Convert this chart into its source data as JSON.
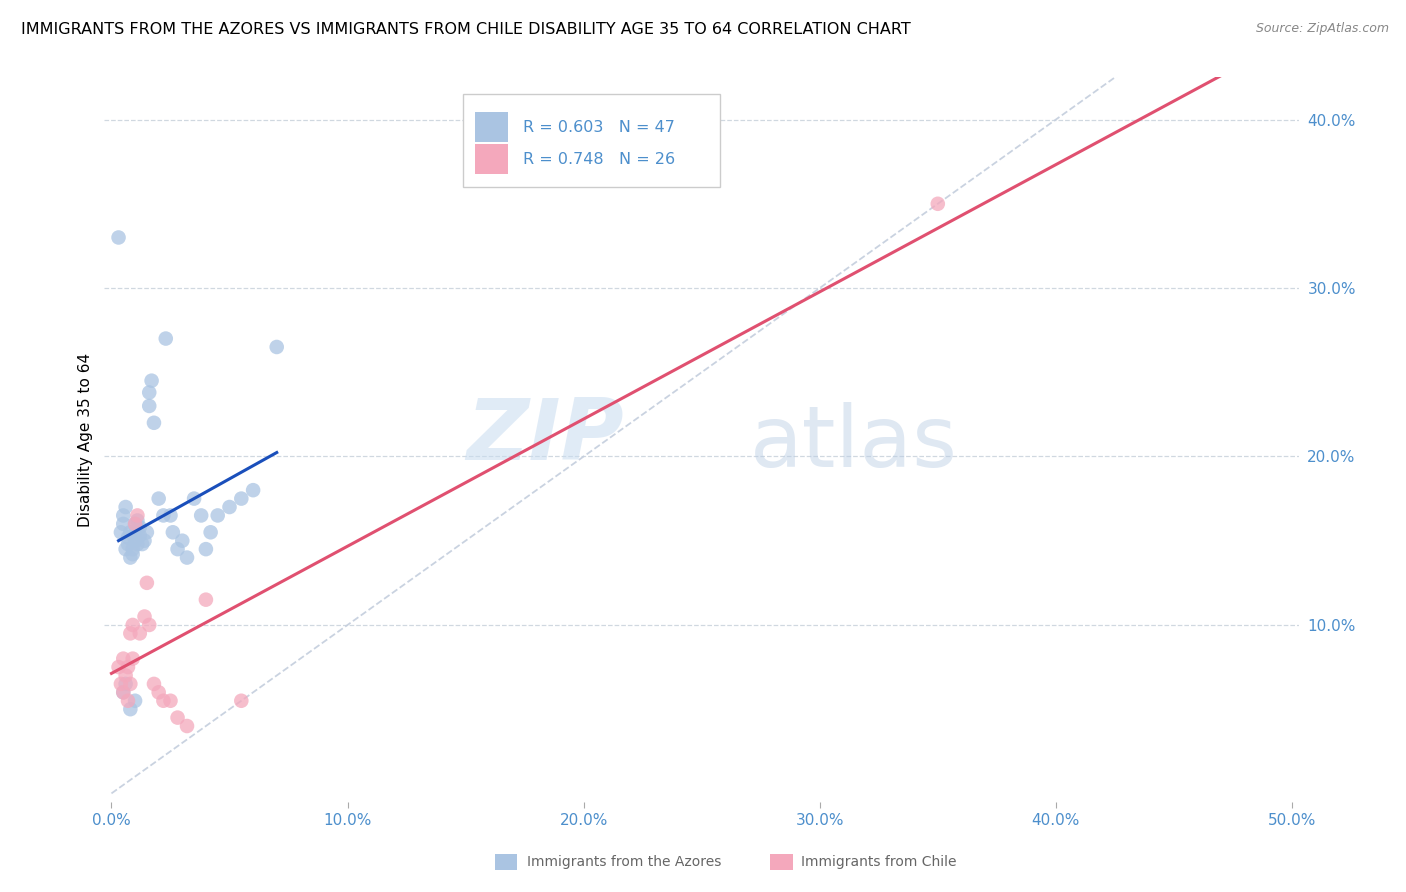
{
  "title": "IMMIGRANTS FROM THE AZORES VS IMMIGRANTS FROM CHILE DISABILITY AGE 35 TO 64 CORRELATION CHART",
  "source": "Source: ZipAtlas.com",
  "ylabel": "Disability Age 35 to 64",
  "xlim": [
    -0.003,
    0.503
  ],
  "ylim": [
    -0.005,
    0.425
  ],
  "xticks": [
    0.0,
    0.1,
    0.2,
    0.3,
    0.4,
    0.5
  ],
  "xticklabels": [
    "0.0%",
    "10.0%",
    "20.0%",
    "30.0%",
    "40.0%",
    "50.0%"
  ],
  "yticks": [
    0.1,
    0.2,
    0.3,
    0.4
  ],
  "yticklabels": [
    "10.0%",
    "20.0%",
    "30.0%",
    "40.0%"
  ],
  "legend_labels": [
    "Immigrants from the Azores",
    "Immigrants from Chile"
  ],
  "R_azores": "0.603",
  "N_azores": "47",
  "R_chile": "0.748",
  "N_chile": "26",
  "azores_color": "#aac4e2",
  "chile_color": "#f4a8bc",
  "azores_line_color": "#1a4fbb",
  "chile_line_color": "#e05070",
  "diagonal_color": "#c4cedd",
  "watermark_zip": "ZIP",
  "watermark_atlas": "atlas",
  "title_fontsize": 11.5,
  "tick_color": "#4d8fcc",
  "azores_x": [
    0.004,
    0.005,
    0.005,
    0.006,
    0.006,
    0.007,
    0.007,
    0.008,
    0.008,
    0.009,
    0.009,
    0.01,
    0.01,
    0.01,
    0.011,
    0.011,
    0.012,
    0.012,
    0.013,
    0.014,
    0.015,
    0.016,
    0.016,
    0.017,
    0.018,
    0.02,
    0.022,
    0.023,
    0.025,
    0.026,
    0.028,
    0.03,
    0.032,
    0.035,
    0.038,
    0.04,
    0.042,
    0.045,
    0.05,
    0.055,
    0.06,
    0.07,
    0.005,
    0.006,
    0.008,
    0.01,
    0.003
  ],
  "azores_y": [
    0.155,
    0.16,
    0.165,
    0.17,
    0.145,
    0.148,
    0.152,
    0.155,
    0.14,
    0.142,
    0.145,
    0.15,
    0.155,
    0.16,
    0.162,
    0.148,
    0.153,
    0.158,
    0.148,
    0.15,
    0.155,
    0.23,
    0.238,
    0.245,
    0.22,
    0.175,
    0.165,
    0.27,
    0.165,
    0.155,
    0.145,
    0.15,
    0.14,
    0.175,
    0.165,
    0.145,
    0.155,
    0.165,
    0.17,
    0.175,
    0.18,
    0.265,
    0.06,
    0.065,
    0.05,
    0.055,
    0.33
  ],
  "chile_x": [
    0.003,
    0.004,
    0.005,
    0.005,
    0.006,
    0.007,
    0.007,
    0.008,
    0.008,
    0.009,
    0.009,
    0.01,
    0.011,
    0.012,
    0.014,
    0.015,
    0.016,
    0.018,
    0.02,
    0.022,
    0.025,
    0.028,
    0.032,
    0.04,
    0.35,
    0.055
  ],
  "chile_y": [
    0.075,
    0.065,
    0.08,
    0.06,
    0.07,
    0.075,
    0.055,
    0.065,
    0.095,
    0.1,
    0.08,
    0.16,
    0.165,
    0.095,
    0.105,
    0.125,
    0.1,
    0.065,
    0.06,
    0.055,
    0.055,
    0.045,
    0.04,
    0.115,
    0.35,
    0.055
  ]
}
